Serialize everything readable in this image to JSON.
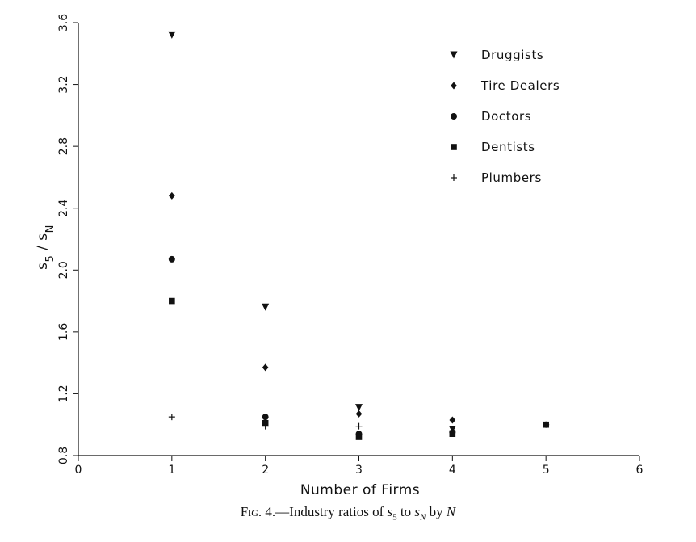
{
  "chart_data": {
    "type": "scatter",
    "ylabel": {
      "base": "s",
      "sub1": "5",
      "mid": " / ",
      "base2": "s",
      "sub2": "N"
    },
    "xlabel": "Number of Firms",
    "xlim": [
      0,
      6
    ],
    "ylim": [
      0.8,
      3.6
    ],
    "x_ticks": [
      "0",
      "1",
      "2",
      "3",
      "4",
      "5",
      "6"
    ],
    "y_ticks": [
      "0.8",
      "1.2",
      "1.6",
      "2.0",
      "2.4",
      "2.8",
      "3.2",
      "3.6"
    ],
    "legend_position": "top-right",
    "series": [
      {
        "name": "Druggists",
        "marker": "triangle-down",
        "points": [
          [
            1,
            3.52
          ],
          [
            2,
            1.76
          ],
          [
            3,
            1.11
          ],
          [
            4,
            0.97
          ]
        ]
      },
      {
        "name": "Tire Dealers",
        "marker": "diamond",
        "points": [
          [
            1,
            2.48
          ],
          [
            2,
            1.37
          ],
          [
            3,
            1.07
          ],
          [
            4,
            1.03
          ]
        ]
      },
      {
        "name": "Doctors",
        "marker": "circle",
        "points": [
          [
            1,
            2.07
          ],
          [
            2,
            1.05
          ],
          [
            3,
            0.94
          ],
          [
            4,
            0.95
          ]
        ]
      },
      {
        "name": "Dentists",
        "marker": "square",
        "points": [
          [
            1,
            1.8
          ],
          [
            2,
            1.01
          ],
          [
            3,
            0.92
          ],
          [
            4,
            0.94
          ],
          [
            5,
            1.0
          ]
        ]
      },
      {
        "name": "Plumbers",
        "marker": "plus",
        "points": [
          [
            1,
            1.05
          ],
          [
            2,
            0.99
          ],
          [
            3,
            0.99
          ],
          [
            4,
            0.96
          ],
          [
            5,
            1.0
          ]
        ]
      }
    ]
  },
  "caption": {
    "fig": "Fig. 4.",
    "dash": "—Industry ratios of ",
    "s1": "s",
    "s1_sub": "5",
    "to": " to ",
    "s2": "s",
    "s2_sub": "N",
    "by": " by ",
    "n": "N"
  }
}
